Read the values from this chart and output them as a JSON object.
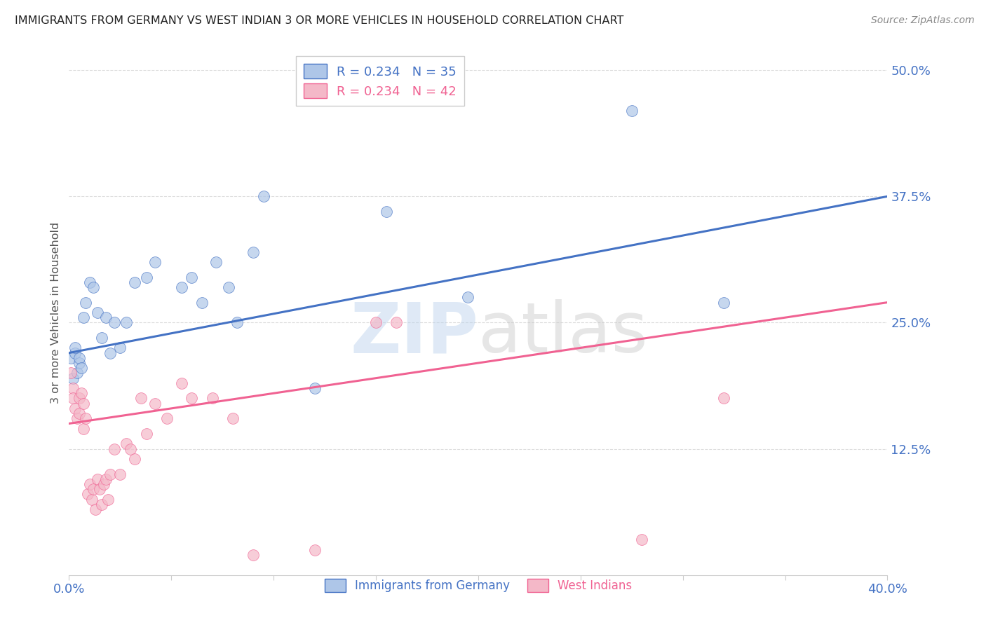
{
  "title": "IMMIGRANTS FROM GERMANY VS WEST INDIAN 3 OR MORE VEHICLES IN HOUSEHOLD CORRELATION CHART",
  "source": "Source: ZipAtlas.com",
  "ylabel": "3 or more Vehicles in Household",
  "xlim": [
    0.0,
    0.4
  ],
  "ylim": [
    0.0,
    0.52
  ],
  "xticks": [
    0.0,
    0.05,
    0.1,
    0.15,
    0.2,
    0.25,
    0.3,
    0.35,
    0.4
  ],
  "xtick_labels": [
    "0.0%",
    "",
    "",
    "",
    "",
    "",
    "",
    "",
    "40.0%"
  ],
  "ytick_labels": [
    "12.5%",
    "25.0%",
    "37.5%",
    "50.0%"
  ],
  "ytick_positions": [
    0.125,
    0.25,
    0.375,
    0.5
  ],
  "watermark_part1": "ZIP",
  "watermark_part2": "atlas",
  "blue_color": "#aec6e8",
  "pink_color": "#f4b8c8",
  "line_blue": "#4472c4",
  "line_pink": "#f06292",
  "title_color": "#222222",
  "axis_label_color": "#4472c4",
  "source_color": "#888888",
  "grid_color": "#dddddd",
  "germany_x": [
    0.001,
    0.002,
    0.003,
    0.003,
    0.004,
    0.005,
    0.005,
    0.006,
    0.007,
    0.008,
    0.01,
    0.012,
    0.014,
    0.016,
    0.018,
    0.02,
    0.022,
    0.025,
    0.028,
    0.032,
    0.038,
    0.042,
    0.055,
    0.06,
    0.065,
    0.072,
    0.078,
    0.082,
    0.09,
    0.095,
    0.12,
    0.155,
    0.195,
    0.275,
    0.32
  ],
  "germany_y": [
    0.215,
    0.195,
    0.22,
    0.225,
    0.2,
    0.21,
    0.215,
    0.205,
    0.255,
    0.27,
    0.29,
    0.285,
    0.26,
    0.235,
    0.255,
    0.22,
    0.25,
    0.225,
    0.25,
    0.29,
    0.295,
    0.31,
    0.285,
    0.295,
    0.27,
    0.31,
    0.285,
    0.25,
    0.32,
    0.375,
    0.185,
    0.36,
    0.275,
    0.46,
    0.27
  ],
  "westindian_x": [
    0.001,
    0.002,
    0.002,
    0.003,
    0.004,
    0.005,
    0.005,
    0.006,
    0.007,
    0.007,
    0.008,
    0.009,
    0.01,
    0.011,
    0.012,
    0.013,
    0.014,
    0.015,
    0.016,
    0.017,
    0.018,
    0.019,
    0.02,
    0.022,
    0.025,
    0.028,
    0.03,
    0.032,
    0.035,
    0.038,
    0.042,
    0.048,
    0.055,
    0.06,
    0.07,
    0.08,
    0.09,
    0.12,
    0.15,
    0.16,
    0.28,
    0.32
  ],
  "westindian_y": [
    0.2,
    0.185,
    0.175,
    0.165,
    0.155,
    0.175,
    0.16,
    0.18,
    0.145,
    0.17,
    0.155,
    0.08,
    0.09,
    0.075,
    0.085,
    0.065,
    0.095,
    0.085,
    0.07,
    0.09,
    0.095,
    0.075,
    0.1,
    0.125,
    0.1,
    0.13,
    0.125,
    0.115,
    0.175,
    0.14,
    0.17,
    0.155,
    0.19,
    0.175,
    0.175,
    0.155,
    0.02,
    0.025,
    0.25,
    0.25,
    0.035,
    0.175
  ],
  "germany_line_x": [
    0.0,
    0.4
  ],
  "germany_line_y": [
    0.22,
    0.375
  ],
  "westindian_line_x": [
    0.0,
    0.4
  ],
  "westindian_line_y": [
    0.15,
    0.27
  ]
}
